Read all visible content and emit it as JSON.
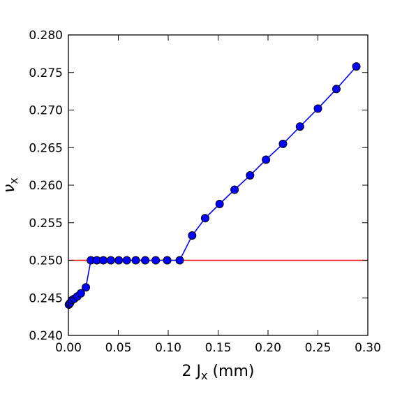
{
  "chart_data": {
    "type": "line",
    "xlabel": {
      "prefix": "2 J",
      "subscript": "x",
      "suffix": " (mm)"
    },
    "ylabel": {
      "symbol": "ν",
      "subscript": "x"
    },
    "xlim": [
      0.0,
      0.3
    ],
    "ylim": [
      0.24,
      0.28
    ],
    "xticks": [
      0.0,
      0.05,
      0.1,
      0.15,
      0.2,
      0.25,
      0.3
    ],
    "xtick_labels": [
      "0.00",
      "0.05",
      "0.10",
      "0.15",
      "0.20",
      "0.25",
      "0.30"
    ],
    "yticks": [
      0.24,
      0.245,
      0.25,
      0.255,
      0.26,
      0.265,
      0.27,
      0.275,
      0.28
    ],
    "ytick_labels": [
      "0.240",
      "0.245",
      "0.250",
      "0.255",
      "0.260",
      "0.265",
      "0.270",
      "0.275",
      "0.280"
    ],
    "grid": false,
    "legend": "none",
    "reference_line": {
      "y": 0.25,
      "color": "#ff0000"
    },
    "series": [
      {
        "color": "#0000ff",
        "marker": "circle",
        "x": [
          0.0005,
          0.0017,
          0.0035,
          0.006,
          0.009,
          0.0125,
          0.0175,
          0.0225,
          0.0285,
          0.035,
          0.0425,
          0.0505,
          0.0585,
          0.0675,
          0.077,
          0.0875,
          0.099,
          0.1115,
          0.124,
          0.137,
          0.1515,
          0.1665,
          0.182,
          0.198,
          0.215,
          0.232,
          0.25,
          0.2685,
          0.2885
        ],
        "y": [
          0.2441,
          0.2443,
          0.2447,
          0.2449,
          0.2452,
          0.2456,
          0.2464,
          0.25,
          0.25,
          0.25,
          0.25,
          0.25,
          0.25,
          0.25,
          0.25,
          0.25,
          0.25,
          0.25,
          0.2533,
          0.2556,
          0.2575,
          0.2594,
          0.2613,
          0.2634,
          0.2655,
          0.2678,
          0.2702,
          0.2728,
          0.2758
        ]
      }
    ]
  }
}
